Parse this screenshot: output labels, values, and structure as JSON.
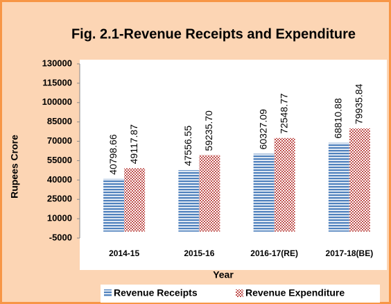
{
  "chart_data": {
    "type": "bar",
    "title": "Fig. 2.1-Revenue Receipts and Expenditure",
    "x_label": "Year",
    "y_label": "Rupees Crore",
    "categories": [
      "2014-15",
      "2015-16",
      "2016-17(RE)",
      "2017-18(BE)"
    ],
    "series": [
      {
        "name": "Revenue Receipts",
        "color": "#4f81bd",
        "values": [
          40798.66,
          47556.55,
          60327.09,
          68810.88
        ],
        "value_labels": [
          "40798.66",
          "47556.55",
          "60327.09",
          "68810.88"
        ]
      },
      {
        "name": "Revenue Expenditure",
        "color": "#c0504d",
        "values": [
          49117.87,
          59235.7,
          72548.77,
          79935.84
        ],
        "value_labels": [
          "49117.87",
          "59235.70",
          "72548.77",
          "79935.84"
        ]
      }
    ],
    "ylim": [
      -5000,
      130000
    ],
    "yticks": [
      -5000,
      10000,
      25000,
      40000,
      55000,
      70000,
      85000,
      100000,
      115000,
      130000
    ],
    "legend": "bottom"
  }
}
